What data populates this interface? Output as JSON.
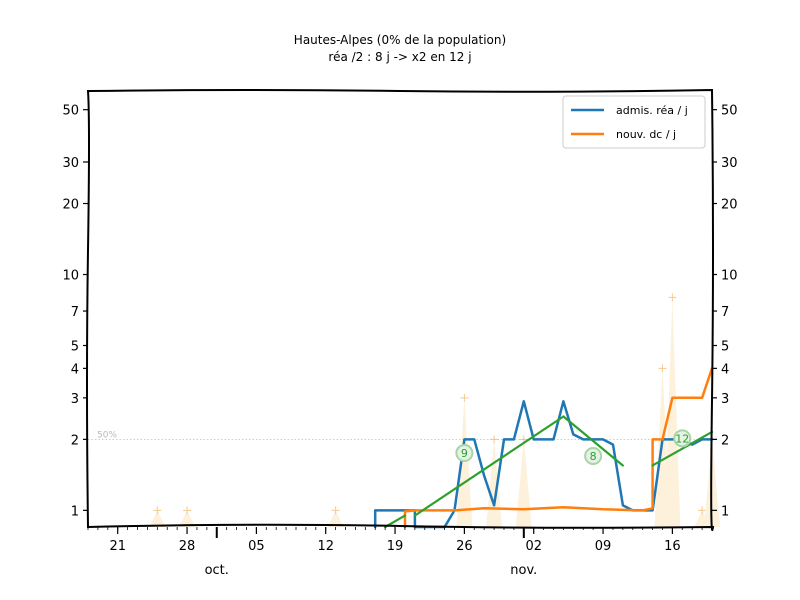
{
  "chart_data": {
    "type": "line",
    "title": "Hautes-Alpes (0% de la population)",
    "subtitle": "réa /2 : 8 j -> x2 en 12 j",
    "yscale": "log",
    "ylim": [
      0.85,
      60
    ],
    "xlim": [
      "2020-09-18",
      "2020-11-20"
    ],
    "y_ticks": [
      1,
      2,
      3,
      4,
      5,
      7,
      10,
      20,
      30,
      50
    ],
    "x_ticks": [
      {
        "date": "2020-09-21",
        "label": "21"
      },
      {
        "date": "2020-09-28",
        "label": "28"
      },
      {
        "date": "2020-10-05",
        "label": "05"
      },
      {
        "date": "2020-10-12",
        "label": "12"
      },
      {
        "date": "2020-10-19",
        "label": "19"
      },
      {
        "date": "2020-10-26",
        "label": "26"
      },
      {
        "date": "2020-11-02",
        "label": "02"
      },
      {
        "date": "2020-11-09",
        "label": "09"
      },
      {
        "date": "2020-11-16",
        "label": "16"
      }
    ],
    "month_labels": [
      {
        "date": "2020-10-01",
        "label": "oct."
      },
      {
        "date": "2020-11-01",
        "label": "nov."
      }
    ],
    "reference_line": {
      "y": 2,
      "label": "50%"
    },
    "legend_position": "top-right",
    "grid": false,
    "series": [
      {
        "name": "admis. réa / j",
        "color": "#1f77b4",
        "points": [
          [
            "2020-10-17",
            0.85
          ],
          [
            "2020-10-17",
            1
          ],
          [
            "2020-10-21",
            1
          ],
          [
            "2020-10-21",
            0.85
          ],
          [
            "2020-10-24",
            0.85
          ],
          [
            "2020-10-25",
            1
          ],
          [
            "2020-10-26",
            2
          ],
          [
            "2020-10-27",
            2
          ],
          [
            "2020-10-28",
            1.4
          ],
          [
            "2020-10-29",
            1.05
          ],
          [
            "2020-10-30",
            2
          ],
          [
            "2020-10-31",
            2
          ],
          [
            "2020-11-01",
            2.9
          ],
          [
            "2020-11-02",
            2
          ],
          [
            "2020-11-03",
            2
          ],
          [
            "2020-11-04",
            2
          ],
          [
            "2020-11-05",
            2.9
          ],
          [
            "2020-11-06",
            2.1
          ],
          [
            "2020-11-07",
            2
          ],
          [
            "2020-11-08",
            2
          ],
          [
            "2020-11-09",
            2
          ],
          [
            "2020-11-10",
            1.9
          ],
          [
            "2020-11-11",
            1.05
          ],
          [
            "2020-11-12",
            1
          ],
          [
            "2020-11-13",
            1
          ],
          [
            "2020-11-14",
            1
          ],
          [
            "2020-11-15",
            2
          ],
          [
            "2020-11-16",
            2
          ],
          [
            "2020-11-17",
            2
          ],
          [
            "2020-11-18",
            1.9
          ],
          [
            "2020-11-19",
            2
          ],
          [
            "2020-11-20",
            2
          ]
        ]
      },
      {
        "name": "nouv. dc / j",
        "color": "#ff7f0e",
        "points": [
          [
            "2020-10-20",
            0.85
          ],
          [
            "2020-10-20",
            0.99
          ],
          [
            "2020-10-21",
            1
          ],
          [
            "2020-10-25",
            1
          ],
          [
            "2020-10-28",
            1.02
          ],
          [
            "2020-11-01",
            1.01
          ],
          [
            "2020-11-05",
            1.03
          ],
          [
            "2020-11-09",
            1.01
          ],
          [
            "2020-11-13",
            1
          ],
          [
            "2020-11-14",
            1.02
          ],
          [
            "2020-11-14",
            2
          ],
          [
            "2020-11-15",
            2
          ],
          [
            "2020-11-16",
            3
          ],
          [
            "2020-11-17",
            3
          ],
          [
            "2020-11-18",
            3
          ],
          [
            "2020-11-19",
            3
          ],
          [
            "2020-11-20",
            4
          ]
        ]
      }
    ],
    "raw_points": [
      [
        "2020-09-25",
        1
      ],
      [
        "2020-09-28",
        1
      ],
      [
        "2020-10-13",
        1
      ],
      [
        "2020-10-26",
        3
      ],
      [
        "2020-10-29",
        2
      ],
      [
        "2020-11-01",
        2
      ],
      [
        "2020-11-15",
        4
      ],
      [
        "2020-11-16",
        8
      ],
      [
        "2020-11-19",
        1
      ],
      [
        "2020-11-20",
        2
      ]
    ],
    "raw_fill_color": "#fdf1dc",
    "trend_lines": [
      {
        "color": "#2ca02c",
        "from": [
          "2020-10-18",
          0.85
        ],
        "to": [
          "2020-10-20",
          0.95
        ]
      },
      {
        "color": "#2ca02c",
        "from": [
          "2020-10-21",
          0.95
        ],
        "to": [
          "2020-11-05",
          2.5
        ]
      },
      {
        "color": "#2ca02c",
        "from": [
          "2020-11-05",
          2.5
        ],
        "to": [
          "2020-11-11",
          1.55
        ]
      },
      {
        "color": "#2ca02c",
        "from": [
          "2020-11-14",
          1.55
        ],
        "to": [
          "2020-11-20",
          2.15
        ]
      }
    ],
    "annotations": [
      {
        "text": "9",
        "x": "2020-10-26",
        "y": 1.75,
        "color": "#2ca02c"
      },
      {
        "text": "8",
        "x": "2020-11-08",
        "y": 1.7,
        "color": "#2ca02c"
      },
      {
        "text": "12",
        "x": "2020-11-17",
        "y": 2.02,
        "color": "#2ca02c"
      }
    ]
  }
}
